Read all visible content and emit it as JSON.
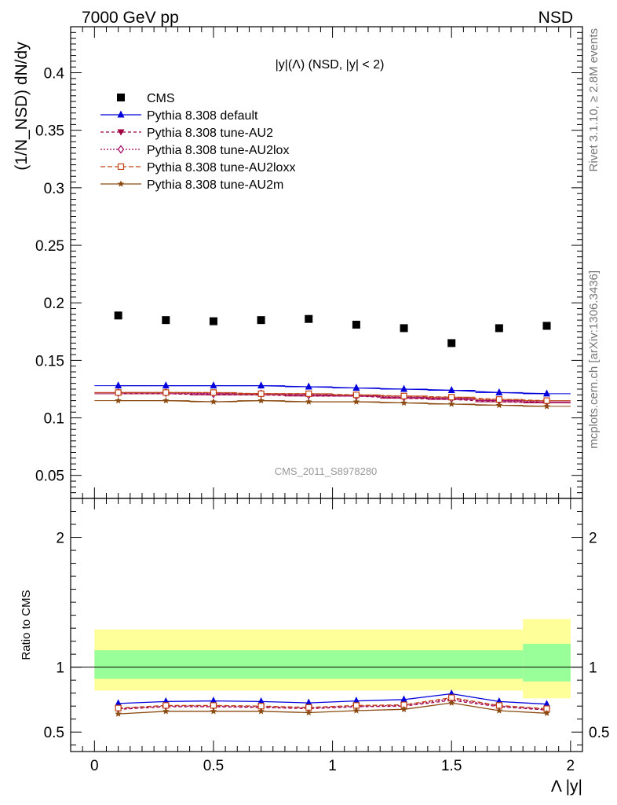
{
  "header": {
    "left": "7000 GeV pp",
    "right": "NSD"
  },
  "side_labels": {
    "rivet": "Rivet 3.1.10, ≥ 2.8M events",
    "mcplots": "mcplots.cern.ch [arXiv:1306.3436]"
  },
  "watermark": "CMS_2011_S8978280",
  "chart_data": {
    "type": "scatter",
    "title": "|y|(Λ) (NSD, |y| < 2)",
    "xlabel": "Λ |y|",
    "ylabel": "(1/N_NSD) dN/dy",
    "ratio_ylabel": "Ratio to CMS",
    "xlim": [
      -0.1,
      2.05
    ],
    "ylim": [
      0.03,
      0.44
    ],
    "ratio_ylim": [
      0.35,
      2.3
    ],
    "x_ticks": [
      0,
      0.5,
      1,
      1.5,
      2
    ],
    "x_tick_labels": [
      "0",
      "0.5",
      "1",
      "1.5",
      "2"
    ],
    "y_ticks": [
      0.05,
      0.1,
      0.15,
      0.2,
      0.25,
      0.3,
      0.35,
      0.4
    ],
    "y_tick_labels": [
      "0.05",
      "0.1",
      "0.15",
      "0.2",
      "0.25",
      "0.3",
      "0.35",
      "0.4"
    ],
    "ratio_ticks": [
      0.5,
      1,
      2
    ],
    "ratio_tick_labels": [
      "0.5",
      "1",
      "2"
    ],
    "x": [
      0.1,
      0.3,
      0.5,
      0.7,
      0.9,
      1.1,
      1.3,
      1.5,
      1.7,
      1.9
    ],
    "data": {
      "name": "CMS",
      "values": [
        0.189,
        0.185,
        0.184,
        0.185,
        0.186,
        0.181,
        0.178,
        0.165,
        0.178,
        0.18
      ]
    },
    "bands": [
      {
        "x_range": [
          0.0,
          1.8
        ],
        "inner": [
          0.91,
          1.13
        ],
        "outer": [
          0.82,
          1.29
        ]
      },
      {
        "x_range": [
          1.8,
          2.0
        ],
        "inner": [
          0.89,
          1.18
        ],
        "outer": [
          0.76,
          1.37
        ]
      }
    ],
    "series": [
      {
        "name": "Pythia 8.308 default",
        "color": "#0000dd",
        "marker": "triangle-up",
        "dash": "solid",
        "values": [
          0.128,
          0.128,
          0.128,
          0.128,
          0.127,
          0.126,
          0.125,
          0.124,
          0.122,
          0.121
        ],
        "ratio": [
          0.72,
          0.735,
          0.74,
          0.735,
          0.725,
          0.74,
          0.75,
          0.795,
          0.735,
          0.715
        ]
      },
      {
        "name": "Pythia 8.308 tune-AU2",
        "color": "#a00040",
        "marker": "triangle-down",
        "dash": "4,3",
        "values": [
          0.121,
          0.121,
          0.12,
          0.12,
          0.119,
          0.119,
          0.117,
          0.116,
          0.114,
          0.113
        ],
        "ratio": [
          0.675,
          0.695,
          0.695,
          0.69,
          0.68,
          0.695,
          0.7,
          0.745,
          0.695,
          0.67
        ]
      },
      {
        "name": "Pythia 8.308 tune-AU2lox",
        "color": "#a00060",
        "marker": "diamond-open",
        "dash": "2,2",
        "values": [
          0.122,
          0.122,
          0.121,
          0.121,
          0.12,
          0.119,
          0.118,
          0.117,
          0.115,
          0.114
        ],
        "ratio": [
          0.68,
          0.7,
          0.7,
          0.695,
          0.685,
          0.7,
          0.705,
          0.755,
          0.7,
          0.675
        ]
      },
      {
        "name": "Pythia 8.308 tune-AU2loxx",
        "color": "#c04010",
        "marker": "square-open",
        "dash": "6,3",
        "values": [
          0.122,
          0.122,
          0.122,
          0.121,
          0.121,
          0.12,
          0.119,
          0.118,
          0.116,
          0.115
        ],
        "ratio": [
          0.685,
          0.705,
          0.705,
          0.7,
          0.69,
          0.705,
          0.71,
          0.765,
          0.705,
          0.68
        ]
      },
      {
        "name": "Pythia 8.308 tune-AU2m",
        "color": "#8b4a10",
        "marker": "star",
        "dash": "solid",
        "values": [
          0.115,
          0.115,
          0.114,
          0.115,
          0.114,
          0.114,
          0.113,
          0.112,
          0.111,
          0.11
        ],
        "ratio": [
          0.64,
          0.66,
          0.66,
          0.66,
          0.65,
          0.665,
          0.675,
          0.725,
          0.665,
          0.645
        ]
      }
    ],
    "legend_position": "top-left",
    "grid": false
  }
}
